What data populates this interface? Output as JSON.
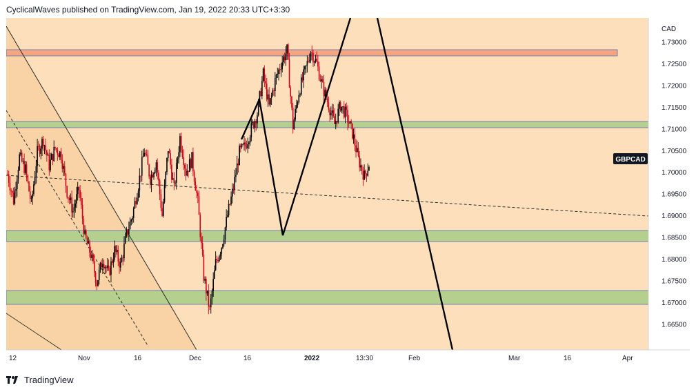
{
  "header": {
    "attribution": "CyclicalWaves published on TradingView.com, Jan 19, 2022 20:33 UTC+3:30"
  },
  "footer": {
    "brand": "TradingView"
  },
  "colors": {
    "background": "#fde0bb",
    "background_shaded": "#f9d2a6",
    "resistance_zone": "#f4a582",
    "support_zone": "#b5cf8e",
    "candle_up": "#000000",
    "candle_down": "#d0021b"
  },
  "chart_data": {
    "type": "candlestick",
    "symbol": "GBPCAD",
    "currency": "CAD",
    "y_ticks": [
      "1.73000",
      "1.72500",
      "1.72000",
      "1.71500",
      "1.71000",
      "1.70500",
      "1.70000",
      "1.69500",
      "1.69000",
      "1.68500",
      "1.68000",
      "1.67500",
      "1.67000",
      "1.66500"
    ],
    "y_tick_values": [
      1.73,
      1.725,
      1.72,
      1.715,
      1.71,
      1.705,
      1.7,
      1.695,
      1.69,
      1.685,
      1.68,
      1.675,
      1.67,
      1.665
    ],
    "ylim": [
      1.659,
      1.7355
    ],
    "x_ticks": [
      "12",
      "Nov",
      "16",
      "Dec",
      "16",
      "2022",
      "13:30",
      "Feb",
      "Mar",
      "16",
      "Apr"
    ],
    "x_tick_bold": [
      false,
      false,
      false,
      false,
      false,
      true,
      false,
      false,
      false,
      false,
      false
    ],
    "last_price_label": "GBPCAD",
    "last_price": 1.7029,
    "approx_price_path": [
      1.6995,
      1.6935,
      1.7035,
      1.7005,
      1.6925,
      1.7045,
      1.7075,
      1.7015,
      1.7055,
      1.704,
      1.6955,
      1.691,
      1.696,
      1.685,
      1.681,
      1.6745,
      1.68,
      1.6765,
      1.682,
      1.6785,
      1.6855,
      1.69,
      1.697,
      1.705,
      1.6985,
      1.7025,
      1.69,
      1.7055,
      1.696,
      1.708,
      1.7,
      1.703,
      1.693,
      1.676,
      1.668,
      1.679,
      1.683,
      1.69,
      1.6965,
      1.7045,
      1.706,
      1.71,
      1.7135,
      1.7225,
      1.715,
      1.721,
      1.725,
      1.728,
      1.7105,
      1.7185,
      1.723,
      1.728,
      1.725,
      1.7195,
      1.7155,
      1.711,
      1.7155,
      1.713,
      1.709,
      1.703,
      1.699,
      1.7025
    ],
    "horizontal_zones": [
      {
        "kind": "resistance",
        "from": 1.7268,
        "to": 1.7282
      },
      {
        "kind": "support",
        "from": 1.7102,
        "to": 1.7116
      },
      {
        "kind": "support",
        "from": 1.6848,
        "to": 1.6872
      },
      {
        "kind": "support",
        "from": 1.6701,
        "to": 1.6732
      }
    ]
  }
}
